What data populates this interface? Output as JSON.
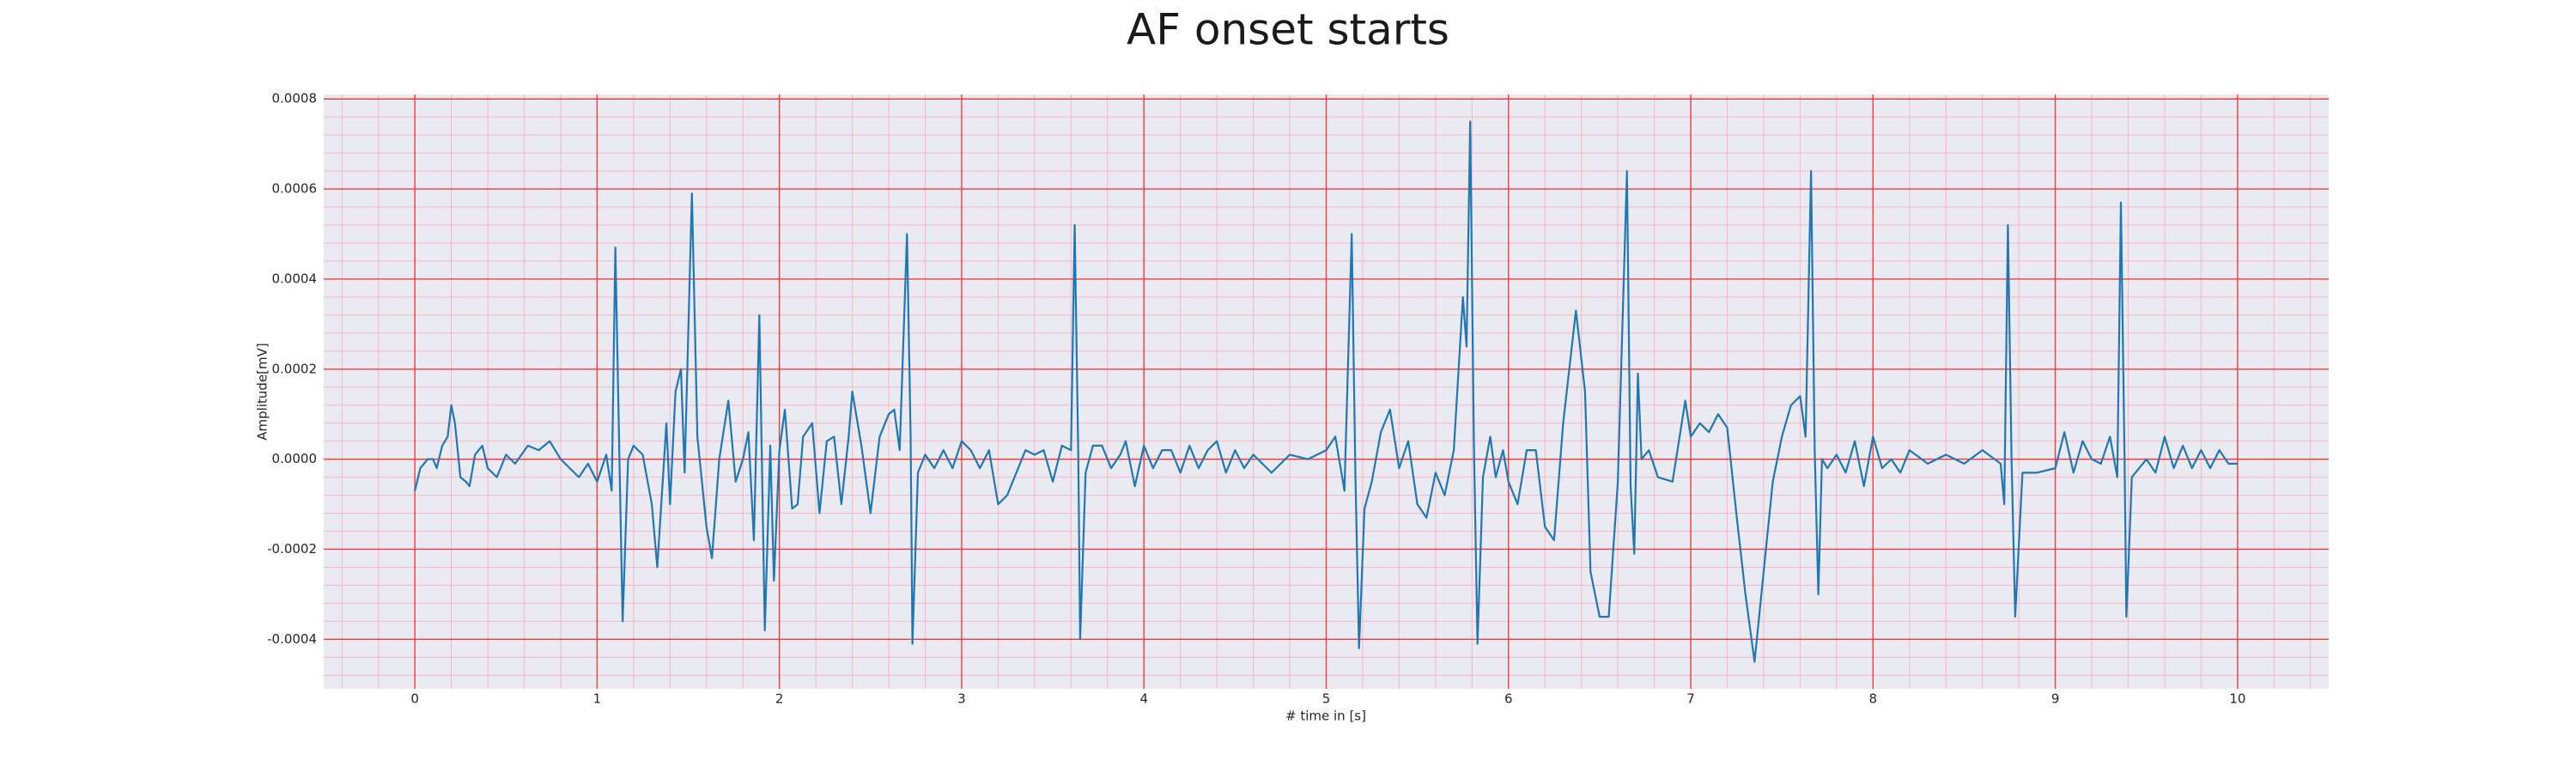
{
  "chart_data": {
    "type": "line",
    "title": "AF onset starts",
    "xlabel": "# time in [s]",
    "ylabel": "Amplitude[mV]",
    "color": "#1f77b4",
    "grid": true,
    "grid_color": "#f03c3c",
    "minor_grid": true,
    "minor_grid_color": "#f7b8c0",
    "background": "#eaeaf2",
    "xlim": [
      -0.5,
      10.5
    ],
    "xticks": [
      0,
      1,
      2,
      3,
      4,
      5,
      6,
      7,
      8,
      9,
      10
    ],
    "ylim": [
      -0.00051,
      0.00081
    ],
    "yticks": [
      {
        "value": -0.0004,
        "label": "-0.0004"
      },
      {
        "value": -0.0002,
        "label": "-0.0002"
      },
      {
        "value": 0,
        "label": "0.0000"
      },
      {
        "value": 0.0002,
        "label": "0.0002"
      },
      {
        "value": 0.0004,
        "label": "0.0004"
      },
      {
        "value": 0.0006,
        "label": "0.0006"
      },
      {
        "value": 0.0008,
        "label": "0.0008"
      }
    ],
    "x": [
      0,
      0.03,
      0.07,
      0.1,
      0.12,
      0.15,
      0.18,
      0.2,
      0.22,
      0.25,
      0.28,
      0.3,
      0.33,
      0.37,
      0.4,
      0.45,
      0.5,
      0.55,
      0.62,
      0.68,
      0.74,
      0.8,
      0.85,
      0.9,
      0.95,
      1.0,
      1.05,
      1.08,
      1.1,
      1.12,
      1.14,
      1.17,
      1.2,
      1.25,
      1.3,
      1.33,
      1.38,
      1.4,
      1.43,
      1.46,
      1.48,
      1.52,
      1.55,
      1.6,
      1.63,
      1.67,
      1.72,
      1.76,
      1.8,
      1.83,
      1.86,
      1.89,
      1.92,
      1.95,
      1.97,
      2.0,
      2.03,
      2.07,
      2.1,
      2.13,
      2.18,
      2.22,
      2.26,
      2.3,
      2.34,
      2.38,
      2.4,
      2.45,
      2.5,
      2.55,
      2.6,
      2.63,
      2.66,
      2.7,
      2.72,
      2.73,
      2.76,
      2.8,
      2.85,
      2.9,
      2.95,
      3.0,
      3.05,
      3.1,
      3.15,
      3.2,
      3.25,
      3.3,
      3.35,
      3.4,
      3.45,
      3.5,
      3.55,
      3.6,
      3.62,
      3.64,
      3.65,
      3.68,
      3.72,
      3.77,
      3.82,
      3.87,
      3.9,
      3.95,
      4.0,
      4.05,
      4.1,
      4.15,
      4.2,
      4.25,
      4.3,
      4.35,
      4.4,
      4.45,
      4.5,
      4.55,
      4.6,
      4.7,
      4.8,
      4.9,
      5.0,
      5.05,
      5.1,
      5.14,
      5.16,
      5.18,
      5.21,
      5.25,
      5.3,
      5.35,
      5.4,
      5.45,
      5.5,
      5.55,
      5.6,
      5.65,
      5.7,
      5.75,
      5.77,
      5.79,
      5.81,
      5.83,
      5.86,
      5.9,
      5.93,
      5.97,
      6.0,
      6.05,
      6.1,
      6.15,
      6.2,
      6.25,
      6.3,
      6.37,
      6.42,
      6.45,
      6.5,
      6.55,
      6.6,
      6.65,
      6.67,
      6.69,
      6.71,
      6.73,
      6.77,
      6.82,
      6.9,
      6.97,
      7.0,
      7.05,
      7.1,
      7.15,
      7.2,
      7.25,
      7.3,
      7.35,
      7.4,
      7.45,
      7.5,
      7.55,
      7.6,
      7.63,
      7.66,
      7.68,
      7.7,
      7.72,
      7.75,
      7.8,
      7.85,
      7.9,
      7.95,
      8.0,
      8.05,
      8.1,
      8.15,
      8.2,
      8.3,
      8.4,
      8.5,
      8.6,
      8.7,
      8.72,
      8.74,
      8.76,
      8.78,
      8.82,
      8.9,
      9.0,
      9.05,
      9.1,
      9.15,
      9.2,
      9.25,
      9.3,
      9.34,
      9.36,
      9.38,
      9.39,
      9.42,
      9.5,
      9.55,
      9.6,
      9.65,
      9.7,
      9.75,
      9.8,
      9.85,
      9.9,
      9.95,
      10.0
    ],
    "values": [
      -7e-05,
      -2e-05,
      0,
      0,
      -2e-05,
      3e-05,
      5e-05,
      0.00012,
      8e-05,
      -4e-05,
      -5e-05,
      -6e-05,
      1e-05,
      3e-05,
      -2e-05,
      -4e-05,
      1e-05,
      -1e-05,
      3e-05,
      2e-05,
      4e-05,
      0,
      -2e-05,
      -4e-05,
      -1e-05,
      -5e-05,
      1e-05,
      -7e-05,
      0.00047,
      5e-05,
      -0.00036,
      0,
      3e-05,
      1e-05,
      -0.0001,
      -0.00024,
      8e-05,
      -0.0001,
      0.00015,
      0.0002,
      -3e-05,
      0.00059,
      5e-05,
      -0.00015,
      -0.00022,
      0,
      0.00013,
      -5e-05,
      0,
      6e-05,
      -0.00018,
      0.00032,
      -0.00038,
      3e-05,
      -0.00027,
      2e-05,
      0.00011,
      -0.00011,
      -0.0001,
      5e-05,
      8e-05,
      -0.00012,
      4e-05,
      5e-05,
      -0.0001,
      5e-05,
      0.00015,
      3e-05,
      -0.00012,
      5e-05,
      0.0001,
      0.00011,
      2e-05,
      0.0005,
      5e-05,
      -0.00041,
      -3e-05,
      1e-05,
      -2e-05,
      2e-05,
      -2e-05,
      4e-05,
      2e-05,
      -2e-05,
      2e-05,
      -0.0001,
      -8e-05,
      -3e-05,
      2e-05,
      1e-05,
      2e-05,
      -5e-05,
      3e-05,
      2e-05,
      0.00052,
      0,
      -0.0004,
      -3e-05,
      3e-05,
      3e-05,
      -2e-05,
      1e-05,
      4e-05,
      -6e-05,
      3e-05,
      -2e-05,
      2e-05,
      2e-05,
      -3e-05,
      3e-05,
      -2e-05,
      2e-05,
      4e-05,
      -3e-05,
      2e-05,
      -2e-05,
      1e-05,
      -3e-05,
      1e-05,
      0,
      2e-05,
      5e-05,
      -7e-05,
      0.0005,
      -3e-05,
      -0.00042,
      -0.00011,
      -5e-05,
      6e-05,
      0.00011,
      -2e-05,
      4e-05,
      -0.0001,
      -0.00013,
      -3e-05,
      -8e-05,
      2e-05,
      0.00036,
      0.00025,
      0.00075,
      4e-05,
      -0.00041,
      -4e-05,
      5e-05,
      -4e-05,
      2e-05,
      -5e-05,
      -0.0001,
      2e-05,
      2e-05,
      -0.00015,
      -0.00018,
      8e-05,
      0.00033,
      0.00015,
      -0.00025,
      -0.00035,
      -0.00035,
      -5e-05,
      0.00064,
      -6e-05,
      -0.00021,
      0.00019,
      0,
      2e-05,
      -4e-05,
      -5e-05,
      0.00013,
      5e-05,
      8e-05,
      6e-05,
      0.0001,
      7e-05,
      -0.00012,
      -0.0003,
      -0.00045,
      -0.00025,
      -5e-05,
      5e-05,
      0.00012,
      0.00014,
      5e-05,
      0.00064,
      2e-05,
      -0.0003,
      0,
      -2e-05,
      1e-05,
      -3e-05,
      4e-05,
      -6e-05,
      5e-05,
      -2e-05,
      0,
      -3e-05,
      2e-05,
      -1e-05,
      1e-05,
      -1e-05,
      2e-05,
      -1e-05,
      -0.0001,
      0.00052,
      0,
      -0.00035,
      -3e-05,
      -3e-05,
      -2e-05,
      6e-05,
      -3e-05,
      4e-05,
      0,
      -1e-05,
      5e-05,
      -4e-05,
      0.00057,
      0,
      -0.00035,
      -4e-05,
      0,
      -3e-05,
      5e-05,
      -2e-05,
      3e-05,
      -2e-05,
      2e-05,
      -2e-05,
      2e-05,
      -1e-05,
      -1e-05
    ]
  }
}
